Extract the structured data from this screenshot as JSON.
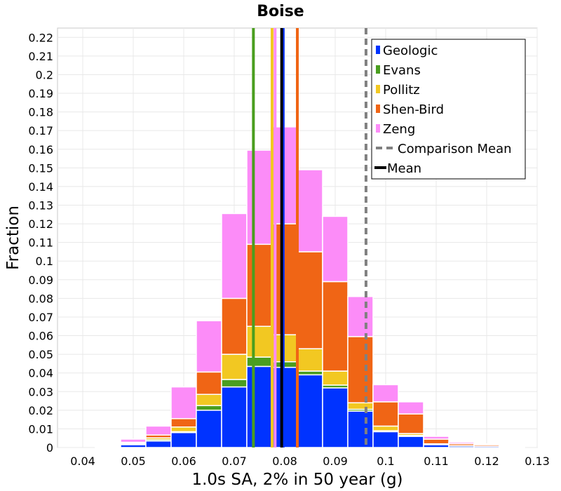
{
  "chart_data": {
    "type": "bar",
    "stacked": true,
    "title": "Boise",
    "xlabel": "1.0s SA, 2% in 50 year (g)",
    "ylabel": "Fraction",
    "xlim": [
      0.035,
      0.13
    ],
    "ylim": [
      0,
      0.225
    ],
    "xticks": [
      "0.04",
      "0.05",
      "0.06",
      "0.07",
      "0.08",
      "0.09",
      "0.1",
      "0.11",
      "0.12",
      "0.13"
    ],
    "yticks": [
      "0",
      "0.01",
      "0.02",
      "0.03",
      "0.04",
      "0.05",
      "0.06",
      "0.07",
      "0.08",
      "0.09",
      "0.1",
      "0.11",
      "0.12",
      "0.13",
      "0.14",
      "0.15",
      "0.16",
      "0.17",
      "0.18",
      "0.19",
      "0.2",
      "0.21",
      "0.22"
    ],
    "grid": true,
    "legend_position": "top-right",
    "bin_width": 0.005,
    "bin_centers": [
      0.045,
      0.05,
      0.055,
      0.06,
      0.065,
      0.07,
      0.075,
      0.08,
      0.085,
      0.09,
      0.095,
      0.1,
      0.105,
      0.11,
      0.115,
      0.12,
      0.125
    ],
    "series": [
      {
        "name": "Geologic",
        "color": "#0033ff",
        "values": [
          0.0003,
          0.0015,
          0.0035,
          0.008,
          0.02,
          0.0325,
          0.0435,
          0.043,
          0.039,
          0.032,
          0.0195,
          0.0085,
          0.006,
          0.0015,
          0.0008,
          0.0007,
          0.0003
        ]
      },
      {
        "name": "Evans",
        "color": "#4a9e1f",
        "values": [
          0.0,
          0.0003,
          0.0007,
          0.0005,
          0.0025,
          0.004,
          0.005,
          0.003,
          0.002,
          0.0015,
          0.001,
          0.0005,
          0.0005,
          0.0002,
          0.0,
          0.0,
          0.0
        ]
      },
      {
        "name": "Pollitz",
        "color": "#f2c822",
        "values": [
          0.0,
          0.0005,
          0.001,
          0.0025,
          0.006,
          0.0135,
          0.0165,
          0.0145,
          0.012,
          0.0075,
          0.0035,
          0.0025,
          0.001,
          0.0003,
          0.0002,
          0.0,
          0.0
        ]
      },
      {
        "name": "Shen-Bird",
        "color": "#f06515",
        "values": [
          0.0,
          0.0005,
          0.0015,
          0.0045,
          0.012,
          0.03,
          0.044,
          0.0595,
          0.052,
          0.048,
          0.0355,
          0.013,
          0.0105,
          0.0025,
          0.001,
          0.0008,
          0.0003
        ]
      },
      {
        "name": "Zeng",
        "color": "#fc8cf8",
        "values": [
          0.0002,
          0.0017,
          0.0048,
          0.017,
          0.0275,
          0.0455,
          0.0505,
          0.052,
          0.044,
          0.035,
          0.0215,
          0.0092,
          0.0065,
          0.0015,
          0.0008,
          0.0005,
          0.0003
        ]
      }
    ],
    "reference_lines": [
      {
        "name": "Geologic",
        "x": 0.0797,
        "color": "#0033ff",
        "style": "solid"
      },
      {
        "name": "Evans",
        "x": 0.0738,
        "color": "#4a9e1f",
        "style": "solid"
      },
      {
        "name": "Pollitz",
        "x": 0.0775,
        "color": "#f2c822",
        "style": "solid"
      },
      {
        "name": "Shen-Bird",
        "x": 0.0825,
        "color": "#f06515",
        "style": "solid"
      },
      {
        "name": "Zeng",
        "x": 0.0781,
        "color": "#fc8cf8",
        "style": "solid"
      },
      {
        "name": "Comparison Mean",
        "x": 0.0961,
        "color": "#808080",
        "style": "dashed"
      },
      {
        "name": "Mean",
        "x": 0.0794,
        "color": "#000000",
        "style": "solid"
      }
    ],
    "legend": [
      {
        "label": "Geologic",
        "color": "#0033ff",
        "kind": "box"
      },
      {
        "label": "Evans",
        "color": "#4a9e1f",
        "kind": "box"
      },
      {
        "label": "Pollitz",
        "color": "#f2c822",
        "kind": "box"
      },
      {
        "label": "Shen-Bird",
        "color": "#f06515",
        "kind": "box"
      },
      {
        "label": "Zeng",
        "color": "#fc8cf8",
        "kind": "box"
      },
      {
        "label": "Comparison Mean",
        "color": "#808080",
        "kind": "dashed"
      },
      {
        "label": "Mean",
        "color": "#000000",
        "kind": "line"
      }
    ]
  }
}
